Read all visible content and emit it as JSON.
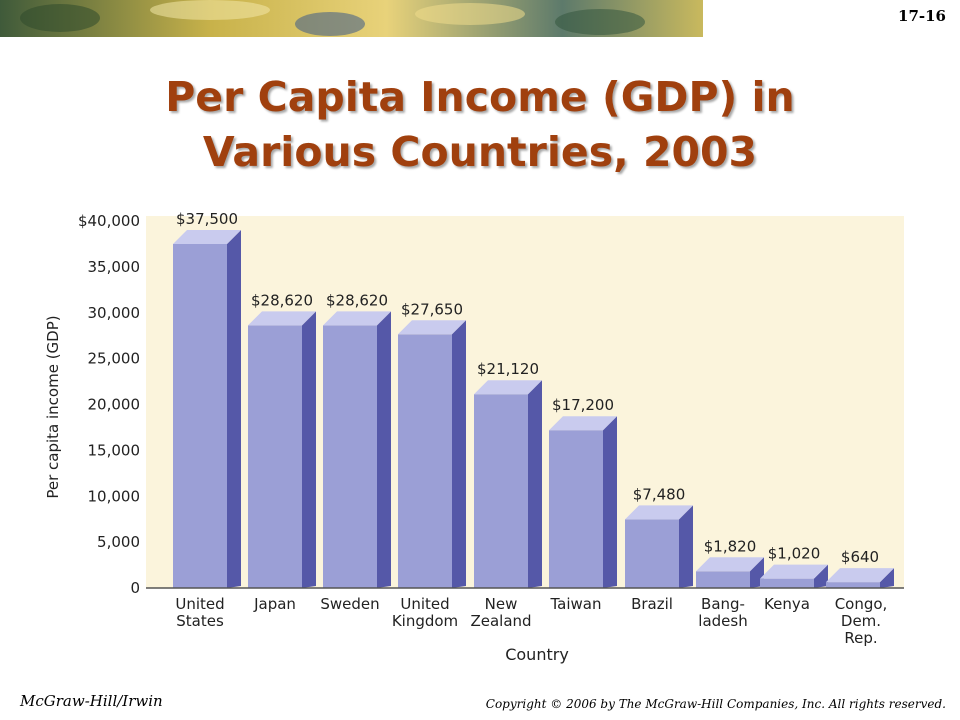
{
  "slide": {
    "number": "17-16",
    "title_line1": "Per Capita Income (GDP) in",
    "title_line2": "Various Countries, 2003",
    "footer_left": "McGraw-Hill/Irwin",
    "footer_right": "Copyright © 2006 by The McGraw-Hill Companies, Inc. All rights reserved.",
    "title_color": "#a0400e"
  },
  "chart_data": {
    "type": "bar",
    "categories": [
      [
        "United",
        "States"
      ],
      [
        "Japan"
      ],
      [
        "Sweden"
      ],
      [
        "United",
        "Kingdom"
      ],
      [
        "New",
        "Zealand"
      ],
      [
        "Taiwan"
      ],
      [
        "Brazil"
      ],
      [
        "Bang-",
        "ladesh"
      ],
      [
        "Kenya"
      ],
      [
        "Congo,",
        "Dem.",
        "Rep."
      ]
    ],
    "values": [
      37500,
      28620,
      28620,
      27650,
      21120,
      17200,
      7480,
      1820,
      1020,
      640
    ],
    "value_labels": [
      "$37,500",
      "$28,620",
      "$28,620",
      "$27,650",
      "$21,120",
      "$17,200",
      "$7,480",
      "$1,820",
      "$1,020",
      "$640"
    ],
    "ylabel": "Per capita income (GDP)",
    "xlabel": "Country",
    "ylim": [
      0,
      40000
    ],
    "yticks": [
      0,
      5000,
      10000,
      15000,
      20000,
      25000,
      30000,
      35000,
      40000
    ],
    "ytick_labels": [
      "0",
      "5,000",
      "10,000",
      "15,000",
      "20,000",
      "25,000",
      "30,000",
      "35,000",
      "$40,000"
    ],
    "grid": false,
    "colors": {
      "bar_front": "#9b9fd6",
      "bar_side": "#5558a8",
      "bar_top": "#c9cbee",
      "plot_background": "#fbf4dc"
    }
  }
}
